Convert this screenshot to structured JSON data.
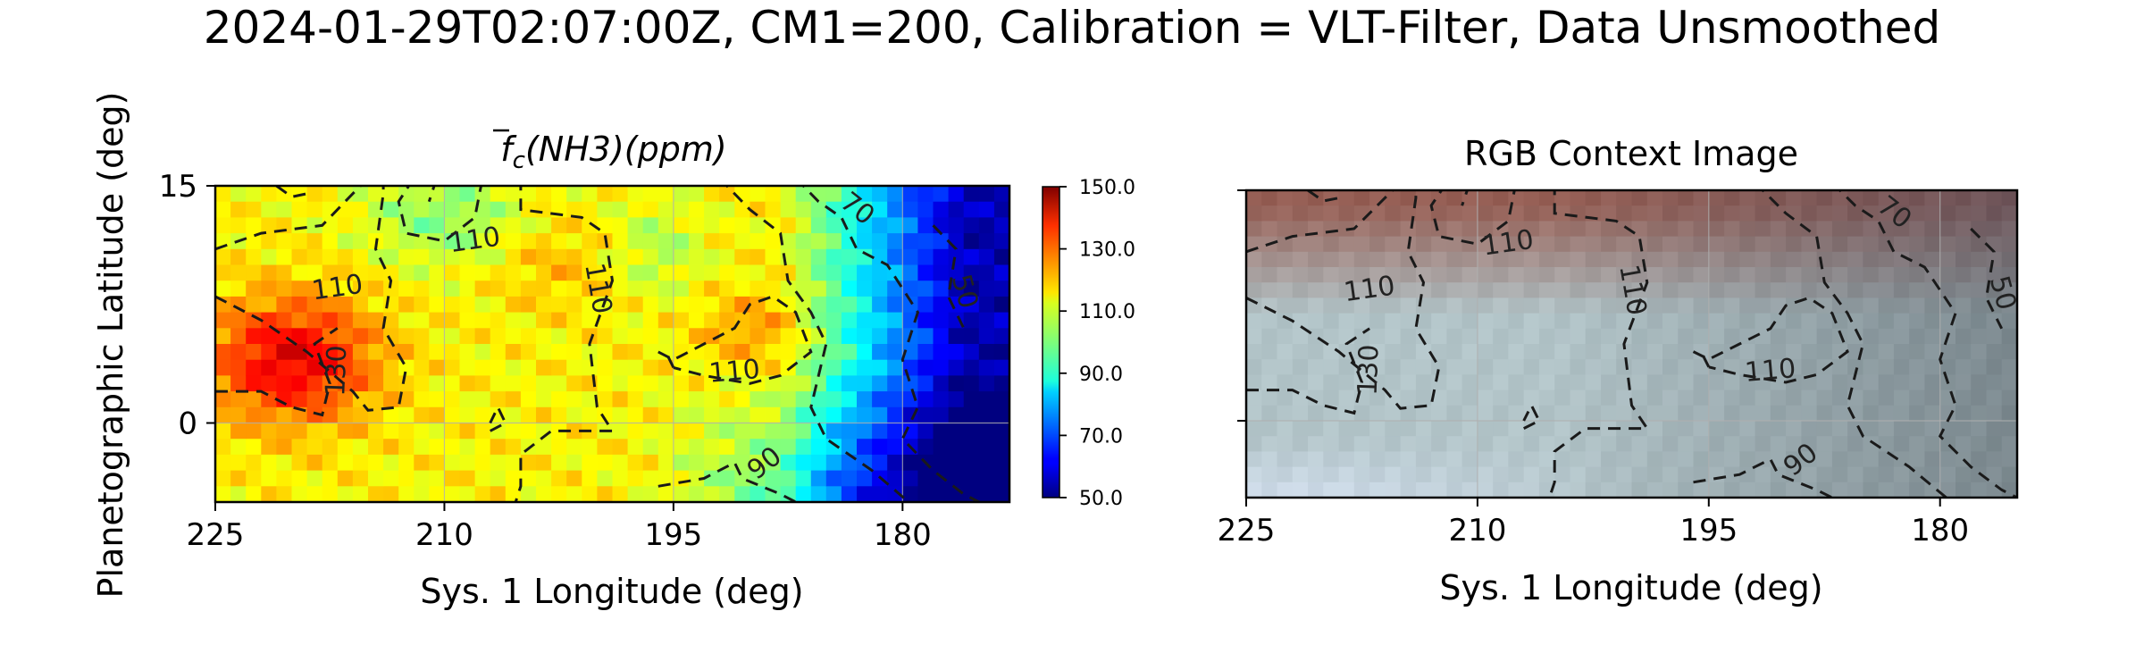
{
  "figure": {
    "suptitle": "2024-01-29T02:07:00Z, CM1=200, Calibration = VLT-Filter, Data Unsmoothed",
    "shared_ylabel": "Planetographic Latitude (deg)"
  },
  "chart_data": [
    {
      "id": "nh3-map",
      "type": "heatmap",
      "title": "f̄c(NH3)(ppm)",
      "title_parts": {
        "f": "f",
        "sub": "c",
        "rest": "(NH3)(ppm)"
      },
      "xlabel": "Sys. 1 Longitude (deg)",
      "ylabel": "Planetographic Latitude (deg)",
      "xlim": [
        225,
        173
      ],
      "ylim": [
        -5,
        15
      ],
      "xticks": [
        "225",
        "210",
        "195",
        "180"
      ],
      "xtick_values": [
        225,
        210,
        195,
        180
      ],
      "yticks": [
        "15",
        "0"
      ],
      "ytick_values": [
        15,
        0
      ],
      "grid": true,
      "colorbar": {
        "cmap": "jet",
        "range": [
          50,
          150
        ],
        "ticks": [
          "150.0",
          "130.0",
          "110.0",
          "90.0",
          "70.0",
          "50.0"
        ],
        "tick_values": [
          150,
          130,
          110,
          90,
          70,
          50
        ]
      },
      "contour_levels": [
        50,
        70,
        90,
        110,
        130
      ],
      "contour_labels": [
        "110",
        "110",
        "110",
        "110",
        "130",
        "90",
        "70",
        "50"
      ],
      "grid_resolution_deg": 1.0
    },
    {
      "id": "rgb-context",
      "type": "heatmap",
      "title": "RGB Context Image",
      "xlabel": "Sys. 1 Longitude (deg)",
      "xlim": [
        225,
        175
      ],
      "ylim": [
        -5,
        15
      ],
      "xticks": [
        "225",
        "210",
        "195",
        "180"
      ],
      "xtick_values": [
        225,
        210,
        195,
        180
      ],
      "grid": true,
      "contour_labels": [
        "110",
        "110",
        "110",
        "110",
        "130",
        "90",
        "70",
        "50"
      ]
    }
  ]
}
